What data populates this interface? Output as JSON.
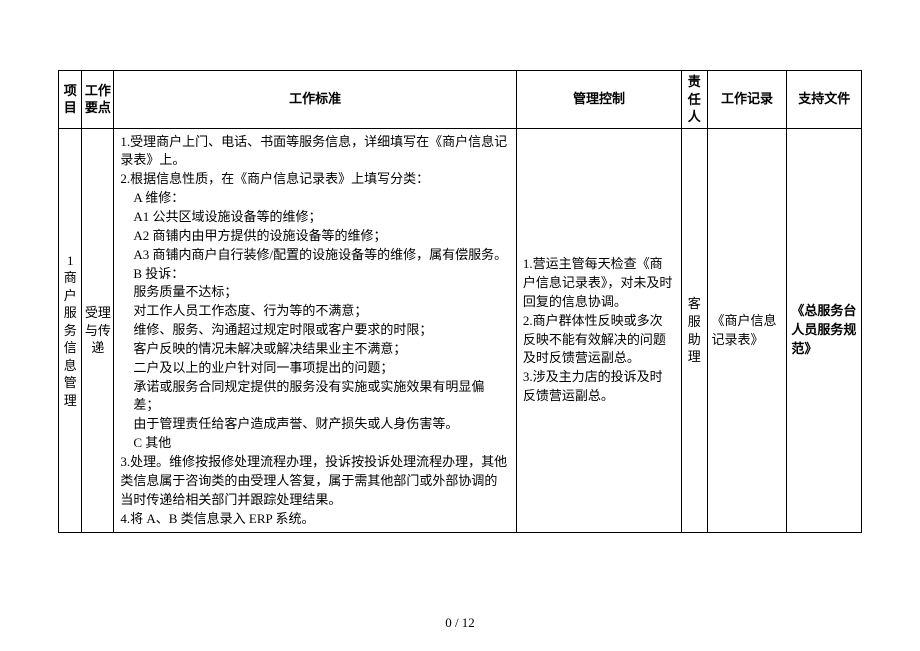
{
  "headers": {
    "project": "项目",
    "keypoint": "工作要点",
    "standard": "工作标准",
    "control": "管理控制",
    "owner": "责任人",
    "record": "工作记录",
    "support": "支持文件"
  },
  "row": {
    "project_num": "1",
    "project_name": "商户服务信息管理",
    "keypoint": "受理与传递",
    "standard_lines": {
      "l1": "1.受理商户上门、电话、书面等服务信息，详细填写在《商户信息记录表》上。",
      "l2": "2.根据信息性质，在《商户信息记录表》上填写分类：",
      "l3": "A 维修：",
      "l4": "A1 公共区域设施设备等的维修；",
      "l5": "A2 商铺内由甲方提供的设施设备等的维修；",
      "l6": "A3 商铺内商户自行装修/配置的设施设备等的维修，属有偿服务。",
      "l7": "B 投诉：",
      "l8": "服务质量不达标；",
      "l9": "对工作人员工作态度、行为等的不满意；",
      "l10": "维修、服务、沟通超过规定时限或客户要求的时限；",
      "l11": "客户反映的情况未解决或解决结果业主不满意；",
      "l12": "二户及以上的业户针对同一事项提出的问题；",
      "l13": "承诺或服务合同规定提供的服务没有实施或实施效果有明显偏差；",
      "l14": "由于管理责任给客户造成声誉、财产损失或人身伤害等。",
      "l15": "C 其他",
      "l16": "3.处理。维修按报修处理流程办理，投诉按投诉处理流程办理，其他类信息属于咨询类的由受理人答复，属于需其他部门或外部协调的当时传递给相关部门并跟踪处理结果。",
      "l17": "4.将 A、B 类信息录入 ERP 系统。"
    },
    "control_lines": {
      "c1": "1.营运主管每天检查《商户信息记录表》，对未及时回复的信息协调。",
      "c2": "2.商户群体性反映或多次反映不能有效解决的问题及时反馈营运副总。",
      "c3": "3.涉及主力店的投诉及时反馈营运副总。"
    },
    "owner": "客服助理",
    "record": "《商户信息记录表》",
    "support": "《总服务台人员服务规范》"
  },
  "footer": "0 / 12"
}
